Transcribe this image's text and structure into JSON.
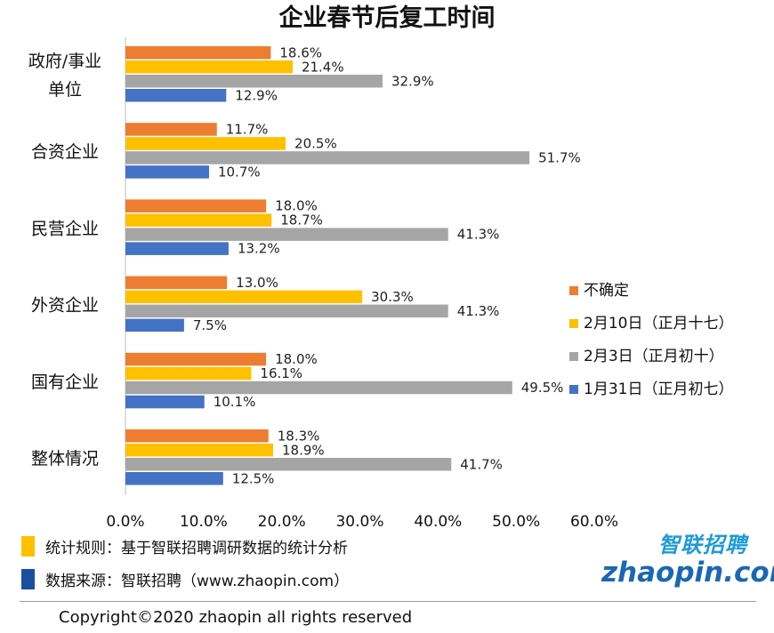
{
  "chart_data": {
    "type": "bar",
    "orientation": "horizontal",
    "title": "企业春节后复工时间",
    "categories": [
      "政府/事业单位",
      "合资企业",
      "民营企业",
      "外资企业",
      "国有企业",
      "整体情况"
    ],
    "category_lines": [
      [
        "政府/事业",
        "单位"
      ],
      [
        "合资企业"
      ],
      [
        "民营企业"
      ],
      [
        "外资企业"
      ],
      [
        "国有企业"
      ],
      [
        "整体情况"
      ]
    ],
    "series": [
      {
        "name": "不确定",
        "color": "#ed7d31",
        "values": [
          18.6,
          11.7,
          18.0,
          13.0,
          18.0,
          18.3
        ]
      },
      {
        "name": "2月10日（正月十七）",
        "color": "#ffc000",
        "values": [
          21.4,
          20.5,
          18.7,
          30.3,
          16.1,
          18.9
        ]
      },
      {
        "name": "2月3日（正月初十）",
        "color": "#a5a5a5",
        "values": [
          32.9,
          51.7,
          41.3,
          41.3,
          49.5,
          41.7
        ]
      },
      {
        "name": "1月31日（正月初七）",
        "color": "#4472c4",
        "values": [
          12.9,
          10.7,
          13.2,
          7.5,
          10.1,
          12.5
        ]
      }
    ],
    "x_ticks": [
      "0.0%",
      "10.0%",
      "20.0%",
      "30.0%",
      "40.0%",
      "50.0%",
      "60.0%"
    ],
    "xlim": [
      0,
      60
    ],
    "value_suffix": "%",
    "legend_position": "right"
  },
  "footer": {
    "rule_label": "统计规则：基于智联招聘调研数据的统计分析",
    "rule_color": "#ffc000",
    "source_label": "数据来源：智联招聘（www.zhaopin.com）",
    "source_color": "#1a4fa0"
  },
  "logo": {
    "cn": "智联招聘",
    "en": "zhaopin.com"
  },
  "copyright": "Copyright©2020 zhaopin all rights reserved"
}
